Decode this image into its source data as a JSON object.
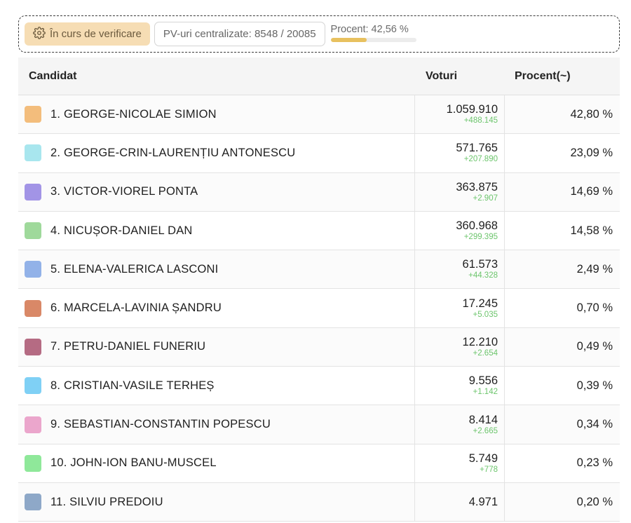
{
  "status": {
    "verification_label": "În curs de verificare",
    "pv_label": "PV-uri centralizate: 8548 / 20085",
    "percent_label": "Procent: 42,56 %",
    "progress_fraction": 0.4256,
    "progress_color": "#e8c15f"
  },
  "table": {
    "headers": {
      "candidate": "Candidat",
      "votes": "Voturi",
      "percent": "Procent(~)"
    },
    "rows": [
      {
        "name": "1. GEORGE-NICOLAE SIMION",
        "votes": "1.059.910",
        "delta": "+488.145",
        "percent": "42,80 %",
        "color": "#f3bd7c"
      },
      {
        "name": "2. GEORGE-CRIN-LAURENȚIU ANTONESCU",
        "votes": "571.765",
        "delta": "+207.890",
        "percent": "23,09 %",
        "color": "#a8e6ee"
      },
      {
        "name": "3. VICTOR-VIOREL PONTA",
        "votes": "363.875",
        "delta": "+2.907",
        "percent": "14,69 %",
        "color": "#a294e6"
      },
      {
        "name": "4. NICUȘOR-DANIEL DAN",
        "votes": "360.968",
        "delta": "+299.395",
        "percent": "14,58 %",
        "color": "#9fd99b"
      },
      {
        "name": "5. ELENA-VALERICA LASCONI",
        "votes": "61.573",
        "delta": "+44.328",
        "percent": "2,49 %",
        "color": "#92b2e8"
      },
      {
        "name": "6. MARCELA-LAVINIA ȘANDRU",
        "votes": "17.245",
        "delta": "+5.035",
        "percent": "0,70 %",
        "color": "#d98867"
      },
      {
        "name": "7. PETRU-DANIEL FUNERIU",
        "votes": "12.210",
        "delta": "+2.654",
        "percent": "0,49 %",
        "color": "#b56b83"
      },
      {
        "name": "8. CRISTIAN-VASILE TERHEȘ",
        "votes": "9.556",
        "delta": "+1.142",
        "percent": "0,39 %",
        "color": "#7fd0f5"
      },
      {
        "name": "9. SEBASTIAN-CONSTANTIN POPESCU",
        "votes": "8.414",
        "delta": "+2.665",
        "percent": "0,34 %",
        "color": "#eba6cc"
      },
      {
        "name": "10. JOHN-ION BANU-MUSCEL",
        "votes": "5.749",
        "delta": "+778",
        "percent": "0,23 %",
        "color": "#8fe89a"
      },
      {
        "name": "11. SILVIU PREDOIU",
        "votes": "4.971",
        "delta": "",
        "percent": "0,20 %",
        "color": "#8ea8c8"
      }
    ]
  }
}
